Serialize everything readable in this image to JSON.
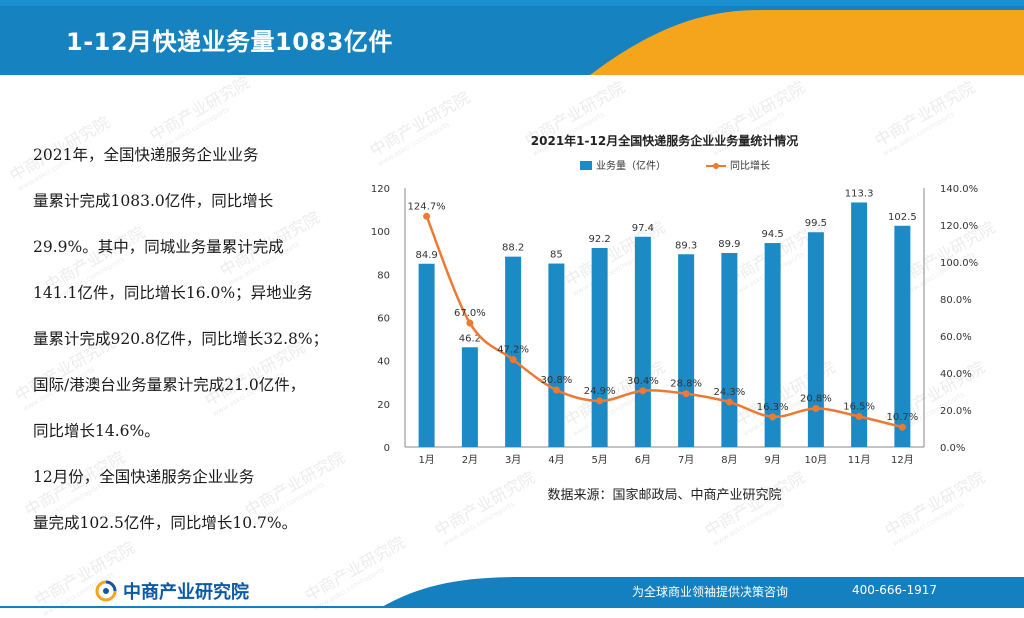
{
  "header": {
    "title": "1-12月快递业务量1083亿件"
  },
  "body_text": [
    "    2021年，全国快递服务企业业务",
    "量累计完成1083.0亿件，同比增长",
    "29.9%。其中，同城业务量累计完成",
    "141.1亿件，同比增长16.0%；异地业务",
    "量累计完成920.8亿件，同比增长32.8%；",
    "国际/港澳台业务量累计完成21.0亿件，",
    "同比增长14.6%。",
    "    12月份，全国快递服务企业业务",
    "量完成102.5亿件，同比增长10.7%。"
  ],
  "chart_data": {
    "type": "bar",
    "title": "2021年1-12月全国快递服务企业业务量统计情况",
    "categories": [
      "1月",
      "2月",
      "3月",
      "4月",
      "5月",
      "6月",
      "7月",
      "8月",
      "9月",
      "10月",
      "11月",
      "12月"
    ],
    "series": [
      {
        "name": "业务量（亿件）",
        "type": "bar",
        "axis": "left",
        "values": [
          84.9,
          46.2,
          88.2,
          85,
          92.2,
          97.4,
          89.3,
          89.9,
          94.5,
          99.5,
          113.3,
          102.5
        ],
        "labels": [
          "84.9",
          "46.2",
          "88.2",
          "85",
          "92.2",
          "97.4",
          "89.3",
          "89.9",
          "94.5",
          "99.5",
          "113.3",
          "102.5"
        ]
      },
      {
        "name": "同比增长",
        "type": "line",
        "axis": "right",
        "values": [
          124.7,
          67.0,
          47.2,
          30.8,
          24.9,
          30.4,
          28.8,
          24.3,
          16.3,
          20.8,
          16.5,
          10.7
        ],
        "labels": [
          "124.7%",
          "67.0%",
          "47.2%",
          "30.8%",
          "24.9%",
          "30.4%",
          "28.8%",
          "24.3%",
          "16.3%",
          "20.8%",
          "16.5%",
          "10.7%"
        ]
      }
    ],
    "y_left": {
      "min": 0,
      "max": 120,
      "ticks": [
        "0",
        "20",
        "40",
        "60",
        "80",
        "100",
        "120"
      ]
    },
    "y_right": {
      "min": 0,
      "max": 140,
      "ticks": [
        "0.0%",
        "20.0%",
        "40.0%",
        "60.0%",
        "80.0%",
        "100.0%",
        "120.0%",
        "140.0%"
      ]
    },
    "source": "数据来源：国家邮政局、中商产业研究院",
    "colors": {
      "bar": "#1c8ac5",
      "line": "#ed7a30"
    },
    "legend": "top-center"
  },
  "footer": {
    "logo_text": "中商产业研究院",
    "slogan": "为全球商业领袖提供决策咨询",
    "phone": "400-666-1917"
  },
  "watermark": {
    "text": "中商产业研究院",
    "sub": "www.askci.com/reports"
  },
  "colors": {
    "banner_blue": "#1683c0",
    "banner_orange": "#f5a51b",
    "footer_blue": "#1480c0"
  }
}
